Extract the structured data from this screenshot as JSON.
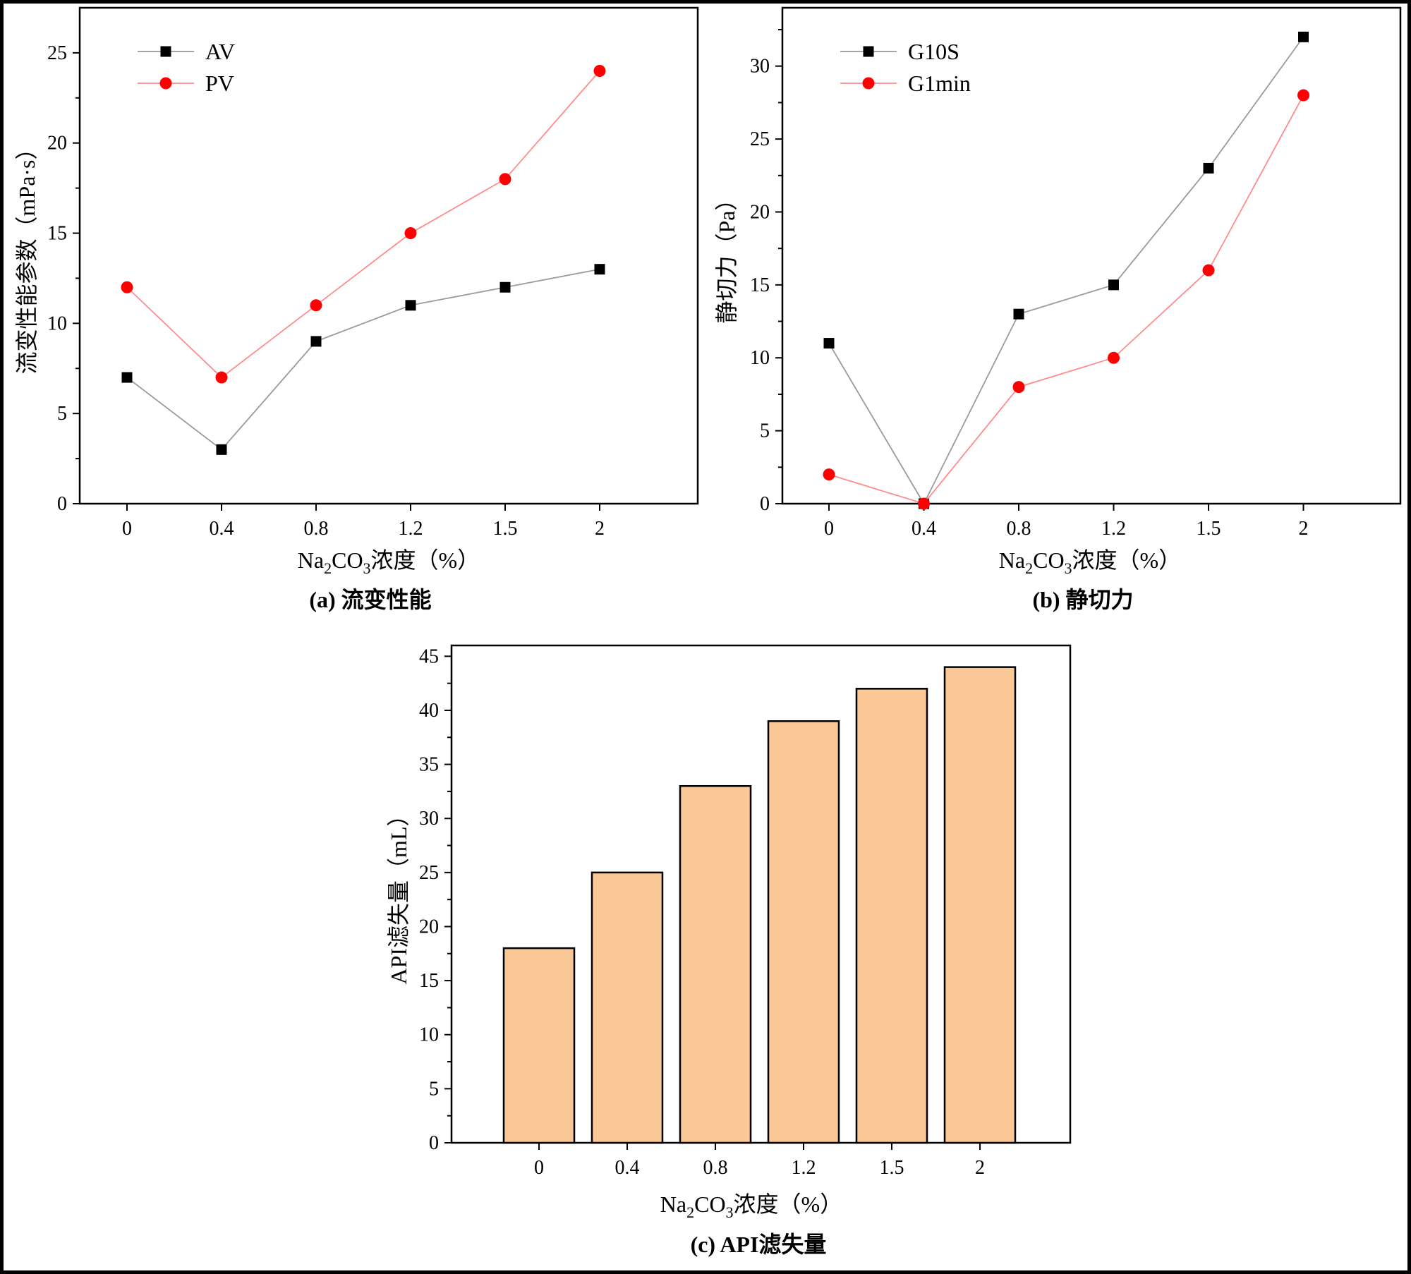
{
  "colors": {
    "black_series": "#000000",
    "black_line": "#9a9a9a",
    "red_series": "#ff0000",
    "red_line": "#ff8c8c",
    "bar_fill": "#fac896",
    "bar_stroke": "#000000"
  },
  "chart_data": [
    {
      "id": "a",
      "type": "line",
      "categories": [
        "0",
        "0.4",
        "0.8",
        "1.2",
        "1.5",
        "2"
      ],
      "series": [
        {
          "name": "AV",
          "marker": "square",
          "values": [
            7,
            3,
            9,
            11,
            12,
            13
          ]
        },
        {
          "name": "PV",
          "marker": "circle",
          "values": [
            12,
            7,
            11,
            15,
            18,
            24
          ]
        }
      ],
      "ylim": [
        0,
        27.5
      ],
      "yticks": [
        "0",
        "5",
        "10",
        "15",
        "20",
        "25"
      ],
      "ylabel": "流变性能参数（mPa·s）",
      "xlabel": {
        "pre": "Na",
        "sub1": "2",
        "mid": "CO",
        "sub2": "3",
        "post": "浓度（%）"
      },
      "caption": "(a) 流变性能",
      "legend": "top-left"
    },
    {
      "id": "b",
      "type": "line",
      "categories": [
        "0",
        "0.4",
        "0.8",
        "1.2",
        "1.5",
        "2"
      ],
      "series": [
        {
          "name": "G10S",
          "marker": "square",
          "values": [
            11,
            0,
            13,
            15,
            23,
            32
          ]
        },
        {
          "name": "G1min",
          "marker": "circle",
          "values": [
            2,
            0,
            8,
            10,
            16,
            28
          ]
        }
      ],
      "ylim": [
        0,
        34
      ],
      "yticks": [
        "0",
        "5",
        "10",
        "15",
        "20",
        "25",
        "30"
      ],
      "ylabel": "静切力（Pa）",
      "xlabel": {
        "pre": "Na",
        "sub1": "2",
        "mid": "CO",
        "sub2": "3",
        "post": "浓度（%）"
      },
      "caption": "(b) 静切力",
      "legend": "top-left"
    },
    {
      "id": "c",
      "type": "bar",
      "categories": [
        "0",
        "0.4",
        "0.8",
        "1.2",
        "1.5",
        "2"
      ],
      "values": [
        18,
        25,
        33,
        39,
        42,
        44
      ],
      "ylim": [
        0,
        46
      ],
      "yticks": [
        "0",
        "5",
        "10",
        "15",
        "20",
        "25",
        "30",
        "35",
        "40",
        "45"
      ],
      "ylabel": "API滤失量（mL）",
      "xlabel": {
        "pre": "Na",
        "sub1": "2",
        "mid": "CO",
        "sub2": "3",
        "post": "浓度（%）"
      },
      "caption": "(c) API滤失量"
    }
  ]
}
